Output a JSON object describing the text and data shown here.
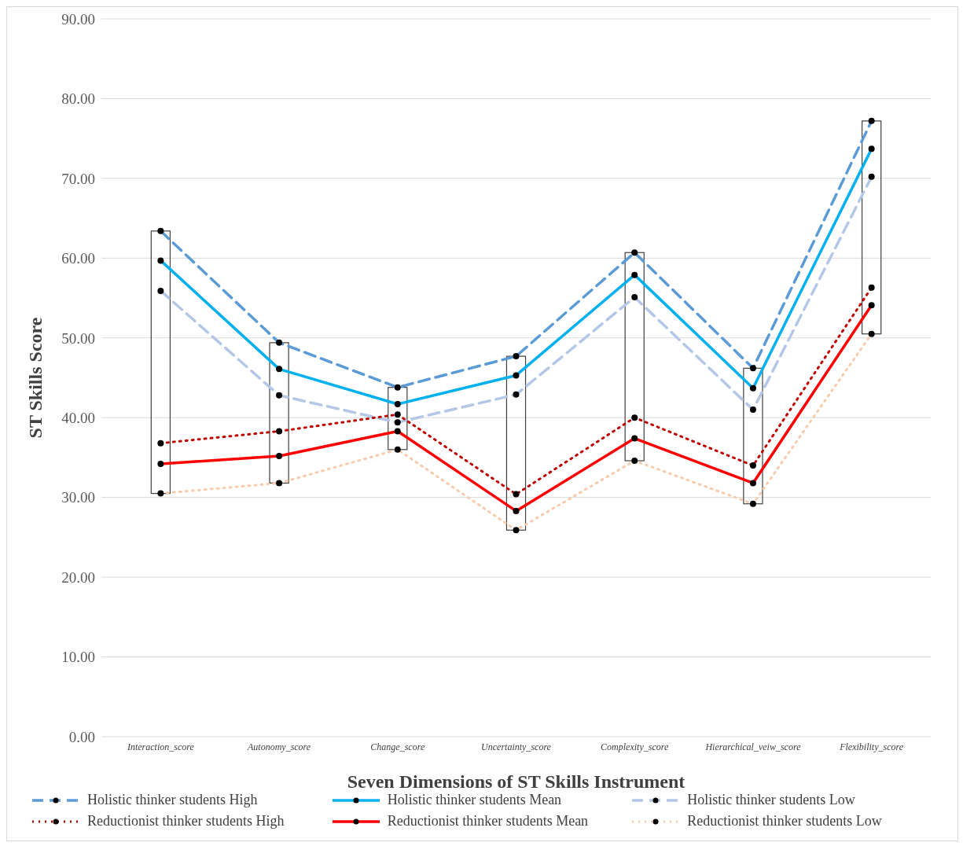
{
  "chart_data": {
    "type": "line",
    "xlabel": "Seven Dimensions of ST Skills Instrument",
    "ylabel": "ST Skills Score",
    "categories": [
      "Interaction_score",
      "Autonomy_score",
      "Change_score",
      "Uncertainty_score",
      "Complexity_score",
      "Hierarchical_veiw_score",
      "Flexibility_score"
    ],
    "series": [
      {
        "name": "Holistic thinker students High",
        "color": "#5b9bd5",
        "line_style": "dashed",
        "values": [
          63.4,
          49.4,
          43.8,
          47.7,
          60.7,
          46.2,
          77.2
        ]
      },
      {
        "name": "Holistic thinker students Mean",
        "color": "#00b0f0",
        "line_style": "solid",
        "values": [
          59.7,
          46.1,
          41.7,
          45.3,
          57.9,
          43.7,
          73.7
        ]
      },
      {
        "name": "Holistic thinker students Low",
        "color": "#b4c7e7",
        "line_style": "dashed",
        "values": [
          55.9,
          42.8,
          39.4,
          42.9,
          55.1,
          41.0,
          70.2
        ]
      },
      {
        "name": "Reductionist thinker students High",
        "color": "#c00000",
        "line_style": "dotted",
        "values": [
          36.8,
          38.3,
          40.4,
          30.4,
          40.0,
          34.0,
          56.3
        ]
      },
      {
        "name": "Reductionist thinker students Mean",
        "color": "#ff0000",
        "line_style": "solid",
        "values": [
          34.2,
          35.2,
          38.3,
          28.3,
          37.4,
          31.8,
          54.1
        ]
      },
      {
        "name": "Reductionist thinker students Low",
        "color": "#f8cbad",
        "line_style": "dotted",
        "values": [
          30.5,
          31.8,
          36.0,
          25.9,
          34.6,
          29.2,
          50.5
        ]
      }
    ],
    "ylim": [
      0,
      90
    ],
    "yticks": [
      {
        "value": 0,
        "label": "0.00"
      },
      {
        "value": 10,
        "label": "10.00"
      },
      {
        "value": 20,
        "label": "20.00"
      },
      {
        "value": 30,
        "label": "30.00"
      },
      {
        "value": 40,
        "label": "40.00"
      },
      {
        "value": 50,
        "label": "50.00"
      },
      {
        "value": 60,
        "label": "60.00"
      },
      {
        "value": 70,
        "label": "70.00"
      },
      {
        "value": 80,
        "label": "80.00"
      },
      {
        "value": 90,
        "label": "90.00"
      }
    ],
    "grid": "y",
    "legend": "bottom",
    "marker": "circle"
  }
}
